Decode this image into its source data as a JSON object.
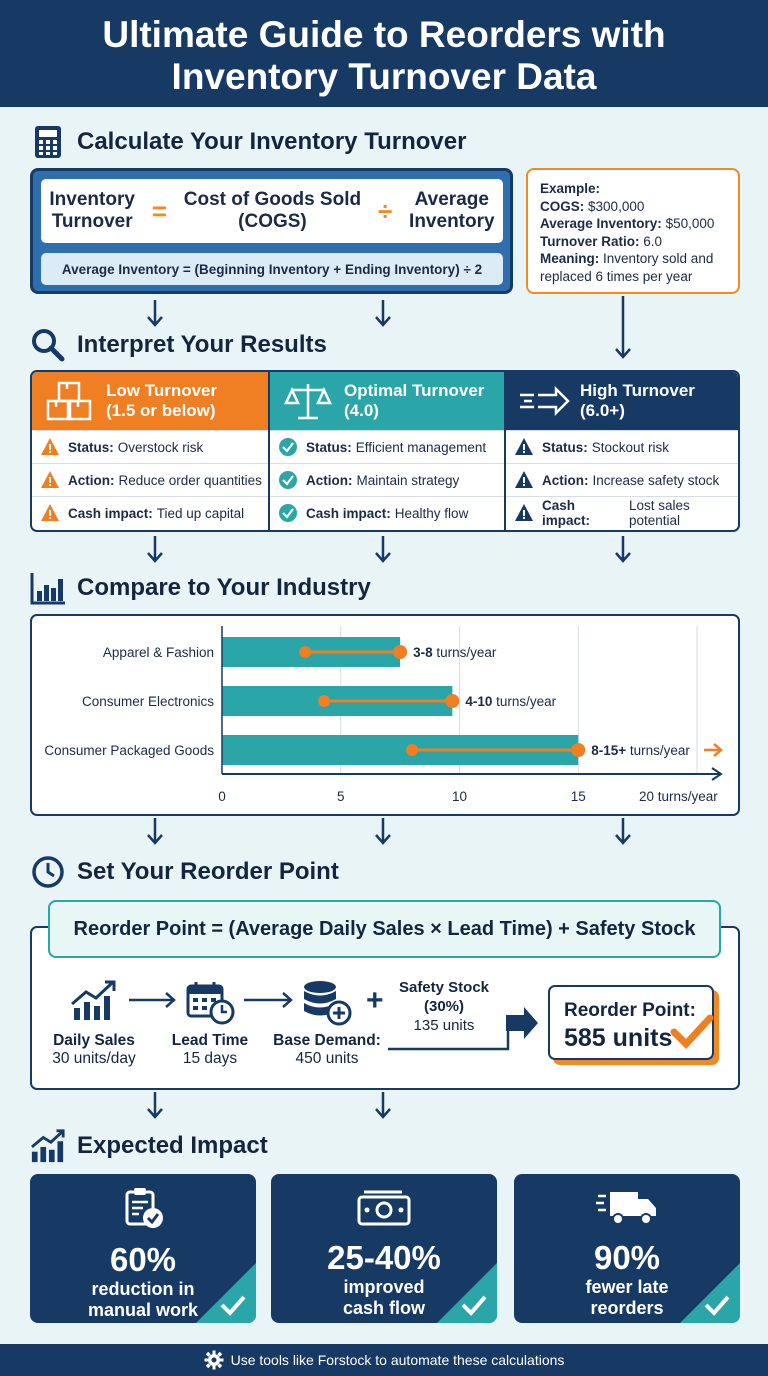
{
  "header": {
    "title_line1": "Ultimate Guide to Reorders with",
    "title_line2": "Inventory Turnover Data"
  },
  "calculate": {
    "title": "Calculate Your Inventory Turnover",
    "formula_left": [
      "Inventory",
      "Turnover"
    ],
    "equals": "=",
    "formula_mid": [
      "Cost of Goods Sold",
      "(COGS)"
    ],
    "divide": "÷",
    "formula_right": [
      "Average",
      "Inventory"
    ],
    "sub_formula": "Average Inventory = (Beginning Inventory + Ending Inventory) ÷ 2",
    "example": {
      "heading": "Example:",
      "cogs_label": "COGS:",
      "cogs_value": "$300,000",
      "avg_label": "Average Inventory:",
      "avg_value": "$50,000",
      "ratio_label": "Turnover Ratio:",
      "ratio_value": "6.0",
      "meaning_label": "Meaning:",
      "meaning_value": "Inventory sold and",
      "meaning_value2": "replaced 6 times per year"
    }
  },
  "interpret": {
    "title": "Interpret Your Results",
    "cards": [
      {
        "name": "Low Turnover",
        "range": "(1.5 or below)",
        "color": "#ef7f22",
        "rows": [
          {
            "label": "Status:",
            "value": "Overstock risk"
          },
          {
            "label": "Action:",
            "value": "Reduce order quantities"
          },
          {
            "label": "Cash impact:",
            "value": "Tied up capital"
          }
        ]
      },
      {
        "name": "Optimal Turnover",
        "range": "(4.0)",
        "color": "#2aa5a8",
        "rows": [
          {
            "label": "Status:",
            "value": "Efficient management"
          },
          {
            "label": "Action:",
            "value": "Maintain strategy"
          },
          {
            "label": "Cash impact:",
            "value": "Healthy flow"
          }
        ]
      },
      {
        "name": "High Turnover",
        "range": "(6.0+)",
        "color": "#163a63",
        "rows": [
          {
            "label": "Status:",
            "value": "Stockout risk"
          },
          {
            "label": "Action:",
            "value": "Increase safety stock"
          },
          {
            "label": "Cash impact:",
            "value": "Lost sales potential"
          }
        ]
      }
    ]
  },
  "compare": {
    "title": "Compare to Your Industry"
  },
  "chart_data": {
    "type": "bar",
    "orientation": "horizontal",
    "categories": [
      "Apparel & Fashion",
      "Consumer Electronics",
      "Consumer Packaged Goods"
    ],
    "values": [
      7.5,
      9.7,
      15
    ],
    "ranges": [
      [
        3.5,
        7.5
      ],
      [
        4.3,
        9.7
      ],
      [
        8,
        15
      ]
    ],
    "range_labels": [
      "3-8 turns/year",
      "4-10 turns/year",
      "8-15+ turns/year"
    ],
    "x_ticks": [
      "0",
      "5",
      "10",
      "15",
      "20 turns/year"
    ],
    "xlim": [
      0,
      20
    ],
    "bar_color": "#2aa5a8",
    "range_color": "#ef7f22"
  },
  "reorder": {
    "title": "Set Your Reorder Point",
    "formula": "Reorder Point = (Average Daily Sales × Lead Time) + Safety Stock",
    "daily_label": "Daily Sales",
    "daily_value": "30 units/day",
    "lead_label": "Lead Time",
    "lead_value": "15 days",
    "base_label": "Base Demand:",
    "base_value": "450 units",
    "plus": "+",
    "safety_label1": "Safety Stock",
    "safety_label2": "(30%)",
    "safety_value": "135 units",
    "result_label": "Reorder Point:",
    "result_value": "585 units"
  },
  "impact": {
    "title": "Expected Impact",
    "cards": [
      {
        "big": "60%",
        "line1": "reduction in",
        "line2": "manual work"
      },
      {
        "big": "25-40%",
        "line1": "improved",
        "line2": "cash flow"
      },
      {
        "big": "90%",
        "line1": "fewer late",
        "line2": "reorders"
      }
    ]
  },
  "footer": {
    "text": "Use tools like Forstock to automate these calculations"
  },
  "colors": {
    "navy": "#163a63",
    "teal": "#2aa5a8",
    "orange": "#ef7f22",
    "background": "#e9f4f7"
  }
}
